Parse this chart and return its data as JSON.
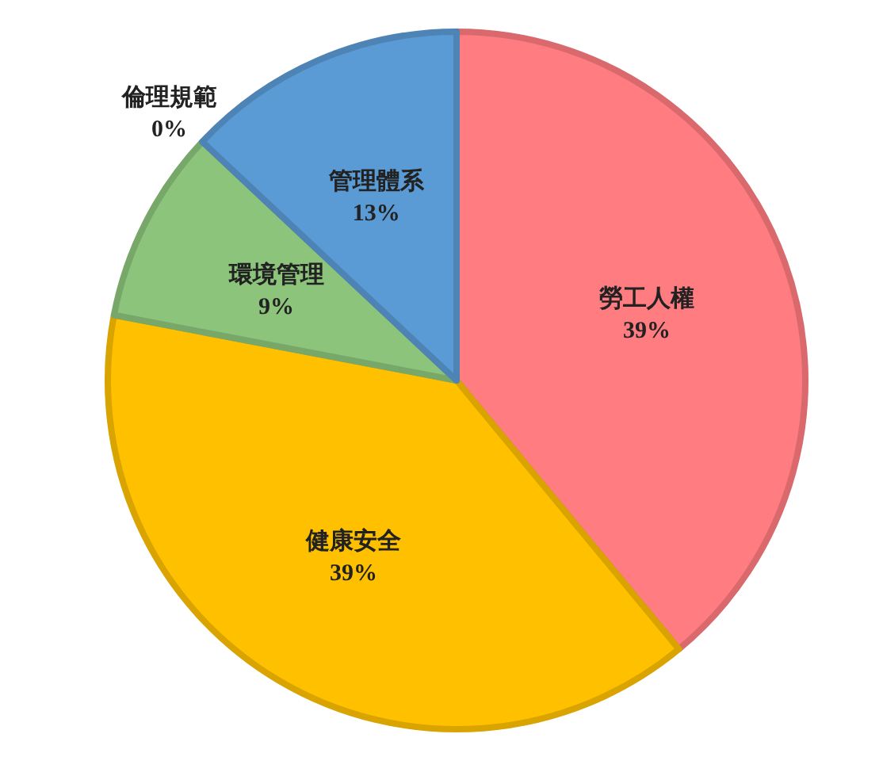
{
  "chart_data": {
    "type": "pie",
    "categories": [
      "勞工人權",
      "健康安全",
      "環境管理",
      "倫理規範",
      "管理體系"
    ],
    "values": [
      39,
      39,
      9,
      0,
      13
    ],
    "value_labels": [
      "39%",
      "39%",
      "9%",
      "0%",
      "13%"
    ],
    "colors": [
      "#ff7c80",
      "#ffc000",
      "#8cc47c",
      "#8cc47c",
      "#5b9bd5"
    ],
    "legend": false
  }
}
